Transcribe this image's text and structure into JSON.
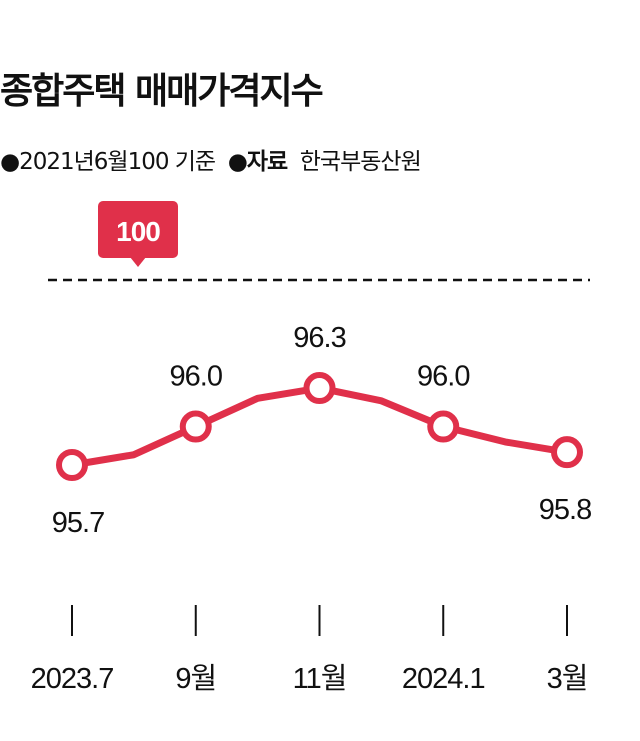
{
  "chart_data": {
    "type": "line",
    "title": "종합주택 매매가격지수",
    "subtitle": {
      "base_note": "2021년6월100 기준",
      "source_label": "자료",
      "source": "한국부동산원"
    },
    "reference_line": {
      "value": 100,
      "label": "100",
      "style": "dashed"
    },
    "x_ticks": [
      "2023.7",
      "9월",
      "11월",
      "2024.1",
      "3월"
    ],
    "x": [
      "2023.7",
      "2023.8",
      "2023.9",
      "2023.10",
      "2023.11",
      "2023.12",
      "2024.1",
      "2024.2",
      "2024.3"
    ],
    "values": [
      95.7,
      95.78,
      96.0,
      96.22,
      96.3,
      96.2,
      96.0,
      95.88,
      95.8
    ],
    "labeled_points": [
      {
        "x": "2023.7",
        "value": 95.7,
        "label": "95.7"
      },
      {
        "x": "2023.9",
        "value": 96.0,
        "label": "96.0"
      },
      {
        "x": "2023.11",
        "value": 96.3,
        "label": "96.3"
      },
      {
        "x": "2024.1",
        "value": 96.0,
        "label": "96.0"
      },
      {
        "x": "2024.3",
        "value": 95.8,
        "label": "95.8"
      }
    ],
    "line_color": "#e0304a",
    "grid": false
  }
}
